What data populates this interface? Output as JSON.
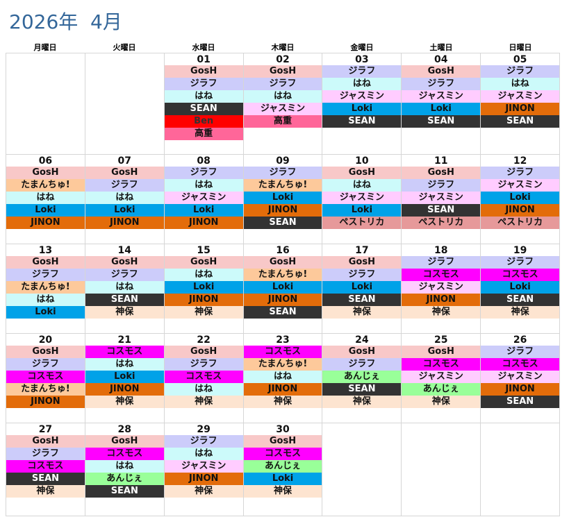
{
  "title": "2026年  4月",
  "weekdays": [
    "月曜日",
    "火曜日",
    "水曜日",
    "木曜日",
    "金曜日",
    "土曜日",
    "日曜日"
  ],
  "colors": {
    "GosH": "#f8c8c8",
    "ジラフ": "#ccccfa",
    "はね": "#ccfafa",
    "SEAN": "#333333",
    "Ben": "#ff0000",
    "高重": "#ff6699",
    "ジャスミン": "#ffccff",
    "Loki": "#00a2e8",
    "JINON": "#e36c0a",
    "たまんちゅ!": "#fdc99b",
    "ペストリカ": "#e6999a",
    "コスモス": "#ff00ff",
    "神保": "#fde4d0",
    "あんじぇ": "#99ff99"
  },
  "textColors": {
    "SEAN": "#ffffff",
    "Ben": "#333333"
  },
  "weeks": [
    [
      {
        "day": "",
        "events": []
      },
      {
        "day": "",
        "events": []
      },
      {
        "day": "01",
        "events": [
          "GosH",
          "ジラフ",
          "はね",
          "SEAN",
          "Ben",
          "高重"
        ]
      },
      {
        "day": "02",
        "events": [
          "GosH",
          "ジラフ",
          "はね",
          "ジャスミン",
          "高重"
        ]
      },
      {
        "day": "03",
        "events": [
          "ジラフ",
          "はね",
          "ジャスミン",
          "Loki",
          "SEAN"
        ]
      },
      {
        "day": "04",
        "events": [
          "GosH",
          "ジラフ",
          "ジャスミン",
          "Loki",
          "SEAN"
        ]
      },
      {
        "day": "05",
        "events": [
          "ジラフ",
          "はね",
          "ジャスミン",
          "JINON",
          "SEAN"
        ]
      }
    ],
    [
      {
        "day": "06",
        "events": [
          "GosH",
          "たまんちゅ!",
          "はね",
          "Loki",
          "JINON"
        ]
      },
      {
        "day": "07",
        "events": [
          "GosH",
          "ジラフ",
          "はね",
          "Loki",
          "JINON"
        ]
      },
      {
        "day": "08",
        "events": [
          "ジラフ",
          "はね",
          "ジャスミン",
          "Loki",
          "JINON"
        ]
      },
      {
        "day": "09",
        "events": [
          "ジラフ",
          "たまんちゅ!",
          "Loki",
          "JINON",
          "SEAN"
        ]
      },
      {
        "day": "10",
        "events": [
          "GosH",
          "はね",
          "ジャスミン",
          "Loki",
          "ペストリカ"
        ]
      },
      {
        "day": "11",
        "events": [
          "GosH",
          "ジラフ",
          "ジャスミン",
          "SEAN",
          "ペストリカ"
        ]
      },
      {
        "day": "12",
        "events": [
          "ジラフ",
          "ジャスミン",
          "Loki",
          "JINON",
          "ペストリカ"
        ]
      }
    ],
    [
      {
        "day": "13",
        "events": [
          "GosH",
          "ジラフ",
          "たまんちゅ!",
          "はね",
          "Loki"
        ]
      },
      {
        "day": "14",
        "events": [
          "GosH",
          "ジラフ",
          "はね",
          "SEAN",
          "神保"
        ]
      },
      {
        "day": "15",
        "events": [
          "GosH",
          "はね",
          "Loki",
          "JINON",
          "神保"
        ]
      },
      {
        "day": "16",
        "events": [
          "GosH",
          "たまんちゅ!",
          "Loki",
          "JINON",
          "SEAN"
        ]
      },
      {
        "day": "17",
        "events": [
          "GosH",
          "ジラフ",
          "Loki",
          "SEAN",
          "神保"
        ]
      },
      {
        "day": "18",
        "events": [
          "ジラフ",
          "コスモス",
          "ジャスミン",
          "JINON",
          "神保"
        ]
      },
      {
        "day": "19",
        "events": [
          "ジラフ",
          "コスモス",
          "Loki",
          "SEAN",
          "神保"
        ]
      }
    ],
    [
      {
        "day": "20",
        "events": [
          "GosH",
          "ジラフ",
          "コスモス",
          "たまんちゅ!",
          "JINON"
        ]
      },
      {
        "day": "21",
        "events": [
          "コスモス",
          "はね",
          "Loki",
          "JINON",
          "神保"
        ]
      },
      {
        "day": "22",
        "events": [
          "GosH",
          "ジラフ",
          "コスモス",
          "はね",
          "神保"
        ]
      },
      {
        "day": "23",
        "events": [
          "コスモス",
          "たまんちゅ!",
          "はね",
          "JINON",
          "神保"
        ]
      },
      {
        "day": "24",
        "events": [
          "GosH",
          "ジラフ",
          "あんじぇ",
          "SEAN",
          "神保"
        ]
      },
      {
        "day": "25",
        "events": [
          "GosH",
          "コスモス",
          "ジャスミン",
          "あんじぇ",
          "神保"
        ]
      },
      {
        "day": "26",
        "events": [
          "ジラフ",
          "コスモス",
          "ジャスミン",
          "JINON",
          "SEAN"
        ]
      }
    ],
    [
      {
        "day": "27",
        "events": [
          "GosH",
          "ジラフ",
          "コスモス",
          "SEAN",
          "神保"
        ]
      },
      {
        "day": "28",
        "events": [
          "GosH",
          "コスモス",
          "はね",
          "あんじぇ",
          "SEAN"
        ]
      },
      {
        "day": "29",
        "events": [
          "ジラフ",
          "はね",
          "ジャスミン",
          "JINON",
          "神保"
        ]
      },
      {
        "day": "30",
        "events": [
          "GosH",
          "コスモス",
          "あんじぇ",
          "Loki",
          "神保"
        ]
      },
      {
        "day": "",
        "events": []
      },
      {
        "day": "",
        "events": []
      },
      {
        "day": "",
        "events": []
      }
    ]
  ]
}
